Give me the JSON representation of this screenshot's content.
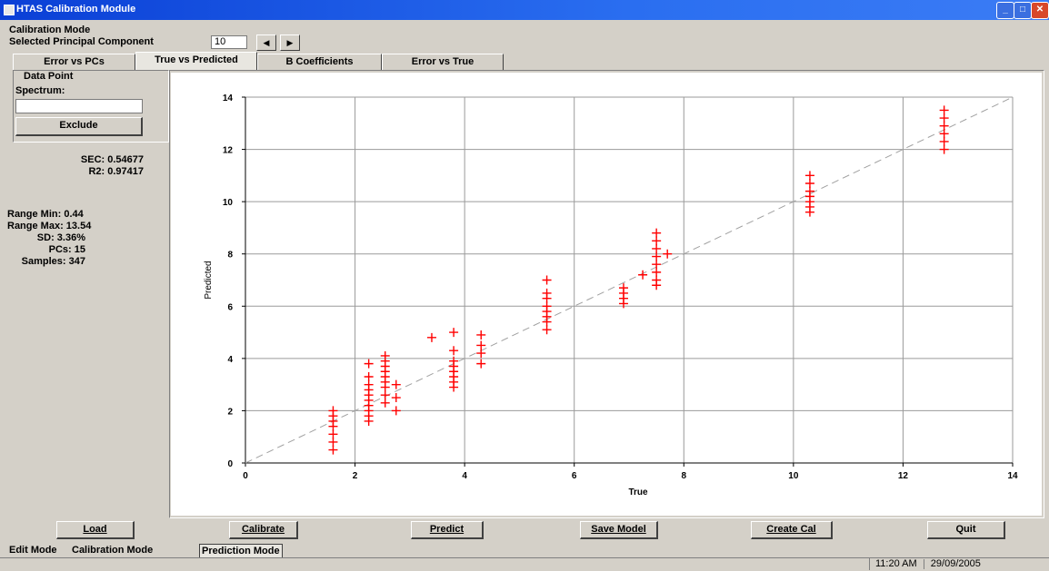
{
  "window": {
    "title": "HTAS Calibration Module"
  },
  "header": {
    "mode_label": "Calibration Mode",
    "pc_label": "Selected Principal Component",
    "pc_value": "10"
  },
  "tabs": [
    "Error vs PCs",
    "True vs Predicted",
    "B Coefficients",
    "Error vs True"
  ],
  "data_point": {
    "group_label": "Data Point",
    "spectrum_label": "Spectrum:",
    "spectrum_value": "",
    "exclude_label": "Exclude"
  },
  "stats": {
    "sec": "SEC: 0.54677",
    "r2": "R2: 0.97417",
    "range_min": "Range Min: 0.44",
    "range_max": "Range Max: 13.54",
    "sd": "SD: 3.36%",
    "pcs": "PCs: 15",
    "samples": "Samples: 347"
  },
  "buttons": {
    "load": "Load",
    "calibrate": "Calibrate",
    "predict": "Predict",
    "save_model": "Save Model",
    "create_cal": "Create Cal",
    "quit": "Quit"
  },
  "modes": [
    "Edit Mode",
    "Calibration Mode",
    "Prediction Mode"
  ],
  "status": {
    "time": "11:20 AM",
    "date": "29/09/2005"
  },
  "icons": {
    "prev": "left-arrow-icon",
    "next": "right-arrow-icon"
  },
  "colors": {
    "titlebar": "#0a3fd6",
    "points": "#ff0000",
    "reference_line": "#a0a0a0"
  },
  "chart_data": {
    "type": "scatter",
    "xlabel": "True",
    "ylabel": "Predicted",
    "xlim": [
      0,
      14
    ],
    "ylim": [
      0,
      14
    ],
    "xticks": [
      0,
      2,
      4,
      6,
      8,
      10,
      12,
      14
    ],
    "yticks": [
      0,
      2,
      4,
      6,
      8,
      10,
      12,
      14
    ],
    "grid": true,
    "reference_line": {
      "x": [
        0,
        14
      ],
      "y": [
        0,
        14
      ],
      "style": "dashed"
    },
    "marker": "+",
    "series": [
      {
        "color": "#ff0000",
        "points": [
          [
            1.6,
            0.5
          ],
          [
            1.6,
            0.8
          ],
          [
            1.6,
            1.1
          ],
          [
            1.6,
            1.4
          ],
          [
            1.6,
            1.6
          ],
          [
            1.6,
            1.8
          ],
          [
            1.6,
            2.0
          ],
          [
            2.25,
            1.6
          ],
          [
            2.25,
            1.8
          ],
          [
            2.25,
            2.0
          ],
          [
            2.25,
            2.2
          ],
          [
            2.25,
            2.4
          ],
          [
            2.25,
            2.6
          ],
          [
            2.25,
            2.8
          ],
          [
            2.25,
            3.0
          ],
          [
            2.25,
            3.3
          ],
          [
            2.25,
            3.8
          ],
          [
            2.55,
            2.3
          ],
          [
            2.55,
            2.6
          ],
          [
            2.55,
            2.9
          ],
          [
            2.55,
            3.1
          ],
          [
            2.55,
            3.3
          ],
          [
            2.55,
            3.5
          ],
          [
            2.55,
            3.7
          ],
          [
            2.55,
            3.9
          ],
          [
            2.55,
            4.1
          ],
          [
            2.75,
            2.0
          ],
          [
            2.75,
            2.5
          ],
          [
            2.75,
            3.0
          ],
          [
            3.4,
            4.8
          ],
          [
            3.8,
            2.9
          ],
          [
            3.8,
            3.1
          ],
          [
            3.8,
            3.3
          ],
          [
            3.8,
            3.5
          ],
          [
            3.8,
            3.7
          ],
          [
            3.8,
            3.9
          ],
          [
            3.8,
            4.3
          ],
          [
            3.8,
            5.0
          ],
          [
            4.3,
            3.8
          ],
          [
            4.3,
            4.2
          ],
          [
            4.3,
            4.5
          ],
          [
            4.3,
            4.9
          ],
          [
            5.5,
            5.1
          ],
          [
            5.5,
            5.4
          ],
          [
            5.5,
            5.6
          ],
          [
            5.5,
            5.8
          ],
          [
            5.5,
            6.0
          ],
          [
            5.5,
            6.3
          ],
          [
            5.5,
            6.5
          ],
          [
            5.5,
            7.0
          ],
          [
            6.9,
            6.1
          ],
          [
            6.9,
            6.3
          ],
          [
            6.9,
            6.5
          ],
          [
            6.9,
            6.7
          ],
          [
            7.25,
            7.2
          ],
          [
            7.5,
            6.8
          ],
          [
            7.5,
            7.0
          ],
          [
            7.5,
            7.3
          ],
          [
            7.5,
            7.6
          ],
          [
            7.5,
            7.9
          ],
          [
            7.5,
            8.2
          ],
          [
            7.5,
            8.5
          ],
          [
            7.5,
            8.8
          ],
          [
            7.7,
            8.0
          ],
          [
            10.3,
            9.6
          ],
          [
            10.3,
            9.8
          ],
          [
            10.3,
            10.0
          ],
          [
            10.3,
            10.2
          ],
          [
            10.3,
            10.4
          ],
          [
            10.3,
            10.7
          ],
          [
            10.3,
            11.0
          ],
          [
            12.75,
            12.0
          ],
          [
            12.75,
            12.3
          ],
          [
            12.75,
            12.6
          ],
          [
            12.75,
            12.9
          ],
          [
            12.75,
            13.2
          ],
          [
            12.75,
            13.5
          ]
        ]
      }
    ]
  }
}
